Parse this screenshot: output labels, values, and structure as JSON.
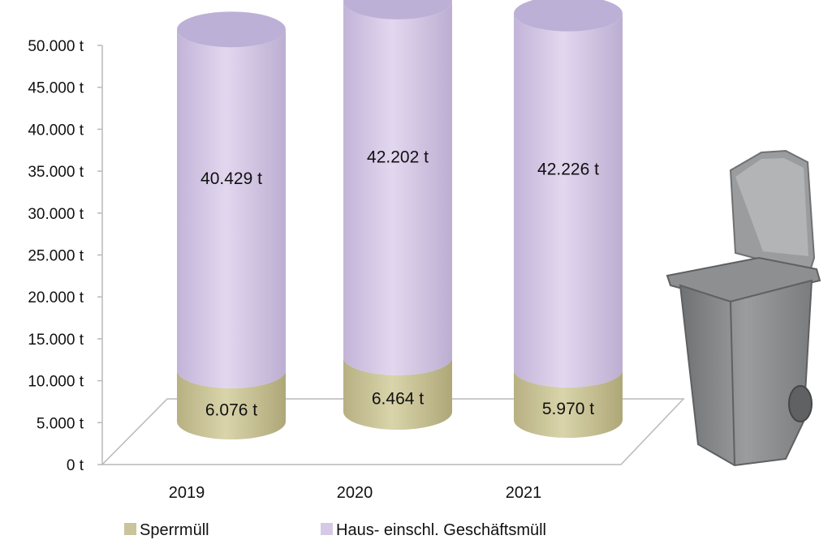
{
  "chart_data": {
    "type": "bar",
    "stacked": true,
    "style": "3d-cylinder",
    "title": "",
    "xlabel": "",
    "ylabel": "",
    "categories": [
      "2019",
      "2020",
      "2021"
    ],
    "series": [
      {
        "name": "Sperrmüll",
        "values": [
          6076,
          6464,
          5970
        ],
        "labels": [
          "6.076 t",
          "6.464 t",
          "5.970 t"
        ],
        "color": "#c9c49a"
      },
      {
        "name": "Haus- einschl. Geschäftsmüll",
        "values": [
          40429,
          42202,
          42226
        ],
        "labels": [
          "40.429 t",
          "42.202 t",
          "42.226 t"
        ],
        "color": "#d6c9e6"
      }
    ],
    "yticks": [
      "0 t",
      "5.000 t",
      "10.000 t",
      "15.000 t",
      "20.000 t",
      "25.000 t",
      "30.000 t",
      "35.000 t",
      "40.000 t",
      "45.000 t",
      "50.000 t"
    ],
    "ylim": [
      0,
      50000
    ],
    "grid": false,
    "legend_position": "bottom"
  },
  "decoration": {
    "image": "waste-bin-icon",
    "bin_color": "#8a8c8e"
  }
}
